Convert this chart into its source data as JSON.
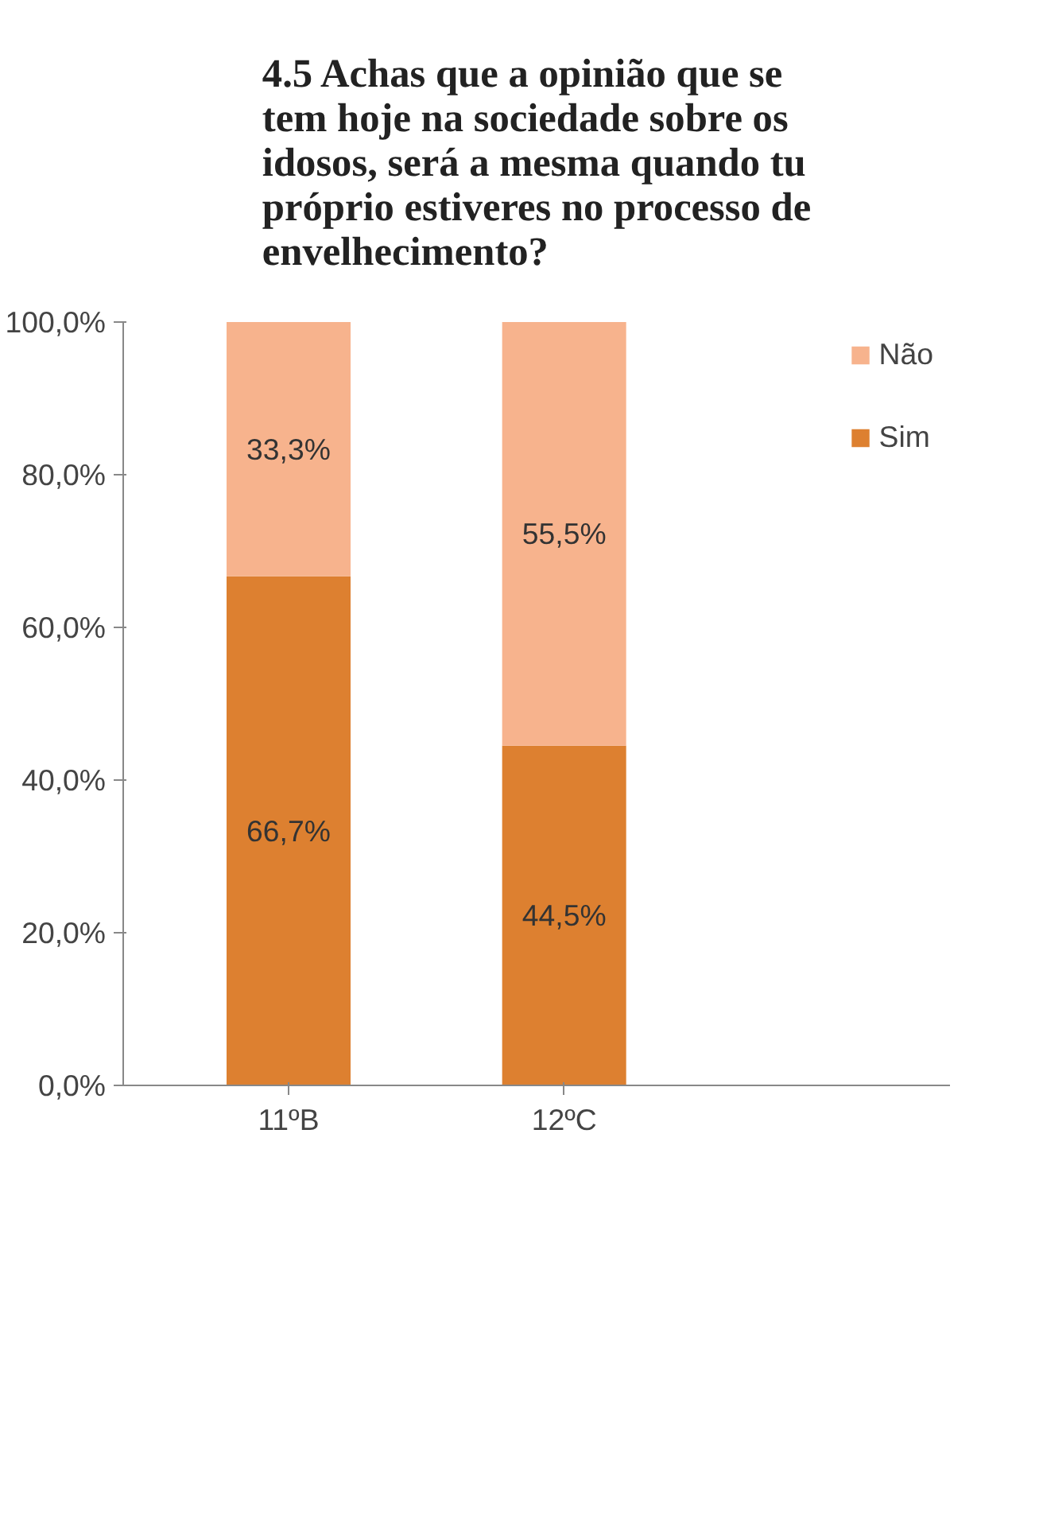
{
  "chart_data": {
    "type": "bar",
    "stacked": true,
    "title": "4.5 Achas que a opinião que se tem hoje na sociedade sobre os idosos, será a mesma quando tu próprio estiveres no processo de envelhecimento?",
    "categories": [
      "11ºB",
      "12ºC"
    ],
    "series": [
      {
        "name": "Sim",
        "color": "#dd8030",
        "values": [
          66.7,
          44.5
        ],
        "value_labels": [
          "66,7%",
          "44,5%"
        ]
      },
      {
        "name": "Não",
        "color": "#f7b38d",
        "values": [
          33.3,
          55.5
        ],
        "value_labels": [
          "33,3%",
          "55,5%"
        ]
      }
    ],
    "ylim": [
      0,
      100
    ],
    "yticks": [
      {
        "value": 0,
        "label": "0,0%"
      },
      {
        "value": 20,
        "label": "20,0%"
      },
      {
        "value": 40,
        "label": "40,0%"
      },
      {
        "value": 60,
        "label": "60,0%"
      },
      {
        "value": 80,
        "label": "80,0%"
      },
      {
        "value": 100,
        "label": "100,0%"
      }
    ],
    "grid": false,
    "legend": "right"
  }
}
